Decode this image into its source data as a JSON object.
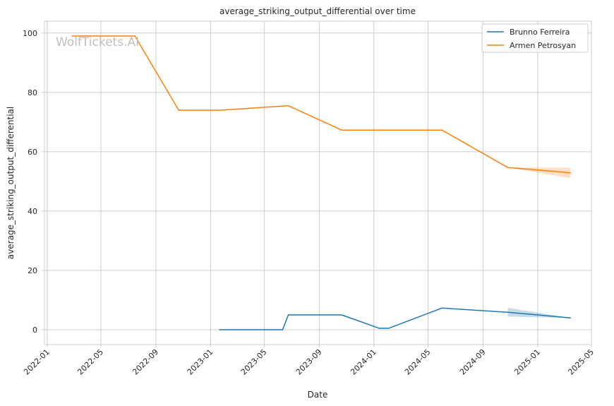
{
  "chart_data": {
    "type": "line",
    "title": "average_striking_output_differential over time",
    "xlabel": "Date",
    "ylabel": "average_striking_output_differential",
    "watermark": "WolfTickets.AI",
    "xlim": [
      "2021-12-26",
      "2025-05-01"
    ],
    "ylim": [
      -5,
      104
    ],
    "grid": true,
    "legend_position": "top-right",
    "x_ticks": [
      "2022-01-01",
      "2022-05-01",
      "2022-09-01",
      "2023-01-01",
      "2023-05-01",
      "2023-09-01",
      "2024-01-01",
      "2024-05-01",
      "2024-09-01",
      "2025-01-01",
      "2025-05-01"
    ],
    "x_tick_labels": [
      "2022-01",
      "2022-05",
      "2022-09",
      "2023-01",
      "2023-05",
      "2023-09",
      "2024-01",
      "2024-05",
      "2024-09",
      "2025-01",
      "2025-05"
    ],
    "y_ticks": [
      0,
      20,
      40,
      60,
      80,
      100
    ],
    "y_tick_labels": [
      "0",
      "20",
      "40",
      "60",
      "80",
      "100"
    ],
    "series": [
      {
        "name": "Brunno Ferreira",
        "color": "#1f77b4",
        "points": [
          {
            "x": "2023-01-21",
            "y": 0
          },
          {
            "x": "2023-06-11",
            "y": 0
          },
          {
            "x": "2023-06-24",
            "y": 5
          },
          {
            "x": "2023-10-21",
            "y": 5
          },
          {
            "x": "2024-01-13",
            "y": 0.5
          },
          {
            "x": "2024-02-03",
            "y": 0.5
          },
          {
            "x": "2024-06-01",
            "y": 7.3
          },
          {
            "x": "2024-10-26",
            "y": 5.9
          },
          {
            "x": "2025-03-15",
            "y": 4
          }
        ],
        "band": [
          {
            "x": "2024-10-26",
            "low": 4.4,
            "high": 7.4
          },
          {
            "x": "2025-03-15",
            "low": 4,
            "high": 4
          }
        ]
      },
      {
        "name": "Armen Petrosyan",
        "color": "#ff7f0e",
        "points": [
          {
            "x": "2022-02-26",
            "y": 99
          },
          {
            "x": "2022-07-16",
            "y": 99
          },
          {
            "x": "2022-10-22",
            "y": 74
          },
          {
            "x": "2023-01-21",
            "y": 74
          },
          {
            "x": "2023-06-24",
            "y": 75.5
          },
          {
            "x": "2023-10-21",
            "y": 67.3
          },
          {
            "x": "2024-06-01",
            "y": 67.3
          },
          {
            "x": "2024-10-26",
            "y": 54.7
          },
          {
            "x": "2025-03-15",
            "y": 52.9
          }
        ],
        "band": [
          {
            "x": "2024-10-26",
            "low": 54.7,
            "high": 54.7
          },
          {
            "x": "2025-03-15",
            "low": 51.1,
            "high": 54.7
          }
        ]
      }
    ]
  }
}
